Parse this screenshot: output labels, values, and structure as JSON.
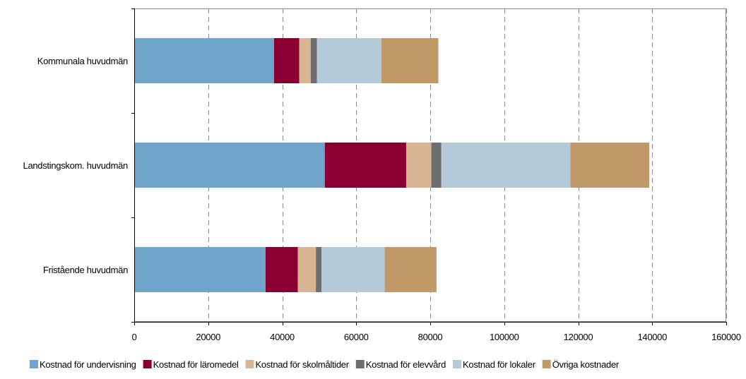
{
  "chart_data": {
    "type": "bar",
    "orientation": "horizontal",
    "stacked": true,
    "title": "",
    "xlabel": "",
    "ylabel": "",
    "categories": [
      "Kommunala huvudmän",
      "Landstingskom. huvudmän",
      "Fristående huvudmän"
    ],
    "xlim": [
      0,
      160000
    ],
    "x_ticks": [
      0,
      20000,
      40000,
      60000,
      80000,
      100000,
      120000,
      140000,
      160000
    ],
    "x_tick_labels": [
      "0",
      "20000",
      "40000",
      "60000",
      "80000",
      "100000",
      "120000",
      "140000",
      "160000"
    ],
    "grid": "vertical dashed",
    "legend_position": "bottom",
    "series": [
      {
        "name": "Kostnad för undervisning",
        "color": "#6fa5cb",
        "values": [
          37800,
          51500,
          35500
        ]
      },
      {
        "name": "Kostnad för läromedel",
        "color": "#8b0033",
        "values": [
          6800,
          22000,
          8700
        ]
      },
      {
        "name": "Kostnad för skolmåltider",
        "color": "#d8b693",
        "values": [
          3100,
          6800,
          4900
        ]
      },
      {
        "name": "Kostnad för elevvård",
        "color": "#6d6e70",
        "values": [
          1700,
          2700,
          1500
        ]
      },
      {
        "name": "Kostnad för lokaler",
        "color": "#b3cad8",
        "values": [
          17400,
          34900,
          17100
        ]
      },
      {
        "name": "Övriga kostnader",
        "color": "#c09968",
        "values": [
          15400,
          21300,
          14000
        ]
      }
    ]
  }
}
